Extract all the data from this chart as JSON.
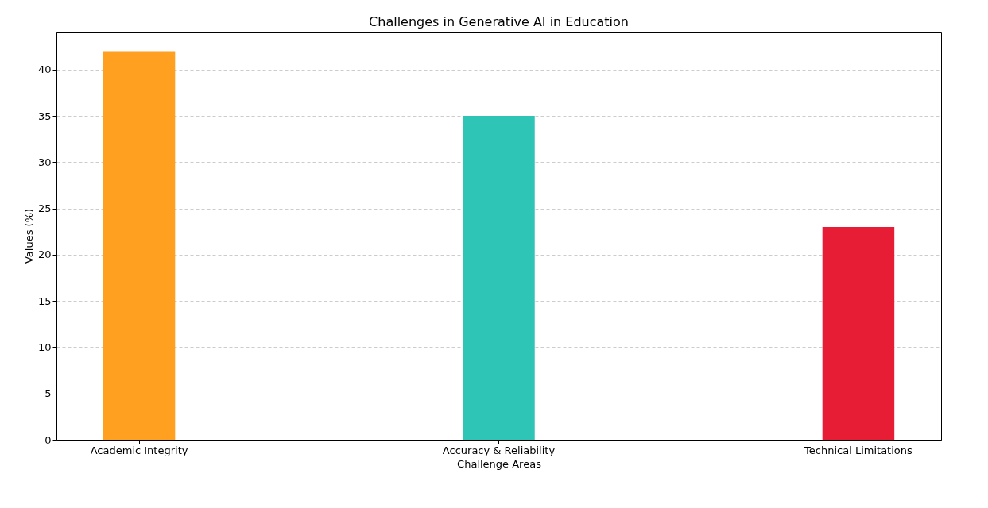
{
  "chart_data": {
    "type": "bar",
    "title": "Challenges in Generative AI in Education",
    "xlabel": "Challenge Areas",
    "ylabel": "Values (%)",
    "categories": [
      "Academic Integrity",
      "Accuracy & Reliability",
      "Technical Limitations"
    ],
    "values": [
      42,
      35,
      23
    ],
    "colors": [
      "#ffa020",
      "#2ec4b6",
      "#e71d36"
    ],
    "ylim": [
      0,
      44.1
    ],
    "yticks": [
      0,
      5,
      10,
      15,
      20,
      25,
      30,
      35,
      40
    ],
    "grid": "y"
  }
}
